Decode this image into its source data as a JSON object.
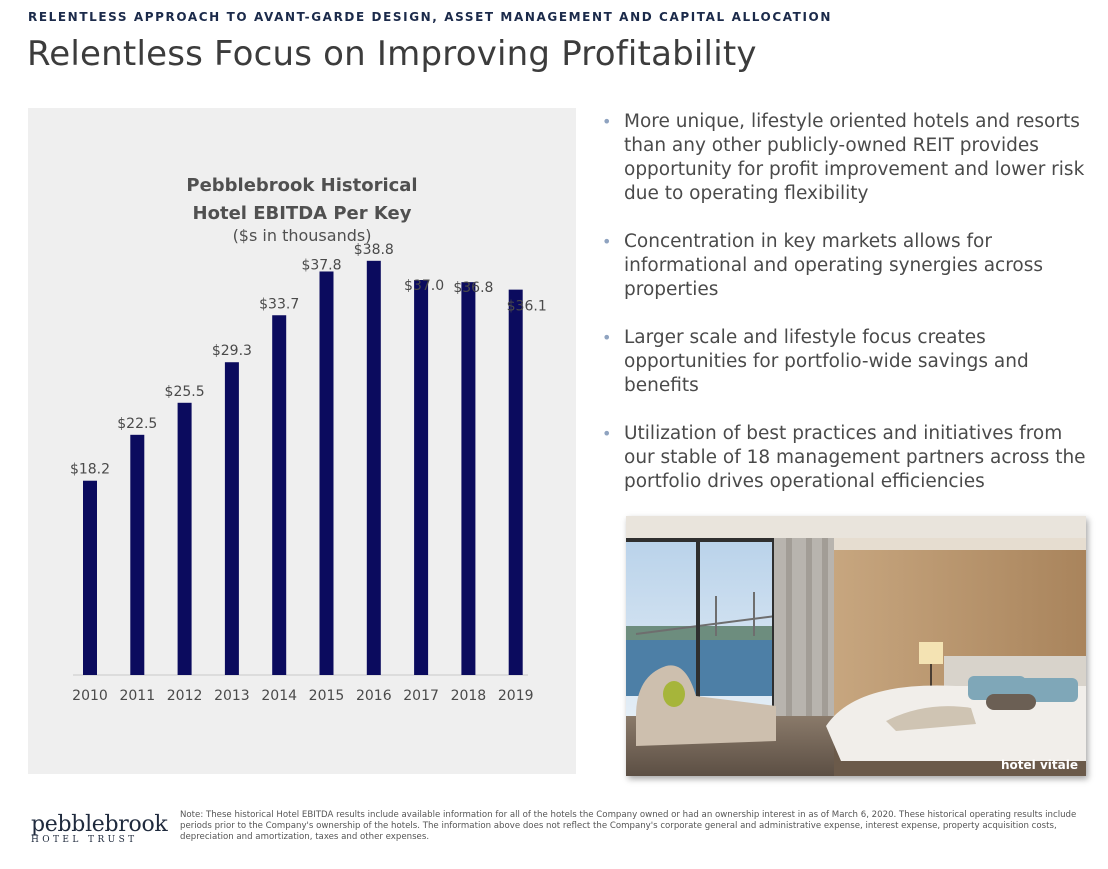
{
  "header": {
    "kicker": "RELENTLESS APPROACH TO AVANT-GARDE DESIGN, ASSET MANAGEMENT AND CAPITAL ALLOCATION",
    "title": "Relentless Focus on Improving Profitability"
  },
  "chart_data": {
    "type": "bar",
    "title_line1": "Pebblebrook Historical",
    "title_line2": "Hotel EBITDA Per Key",
    "subtitle": "($s in thousands)",
    "categories": [
      "2010",
      "2011",
      "2012",
      "2013",
      "2014",
      "2015",
      "2016",
      "2017",
      "2018",
      "2019"
    ],
    "values": [
      18.2,
      22.5,
      25.5,
      29.3,
      33.7,
      37.8,
      38.8,
      37.0,
      36.8,
      36.1
    ],
    "data_labels": [
      "$18.2",
      "$22.5",
      "$25.5",
      "$29.3",
      "$33.7",
      "$37.8",
      "$38.8",
      "$37.0",
      "$36.8",
      "$36.1"
    ],
    "ylim": [
      0,
      40
    ],
    "grid": false,
    "bar_color": "#0b0b5e"
  },
  "bullets": [
    "More unique, lifestyle oriented hotels and resorts than any other publicly-owned REIT provides opportunity for profit improvement and lower risk due to operating flexibility",
    "Concentration in key markets allows for informational and operating synergies across properties",
    "Larger scale and lifestyle focus creates opportunities for portfolio-wide savings and benefits",
    "Utilization of best practices and initiatives from our stable of 18 management partners across the portfolio drives operational efficiencies"
  ],
  "photo": {
    "caption": "hotel vitale"
  },
  "footer": {
    "logo_word": "pebblebrook",
    "logo_sub": "HOTEL TRUST",
    "note": "Note: These historical Hotel EBITDA results include available information for all of the hotels the Company owned or had an ownership interest in as of March 6, 2020. These historical operating results include periods prior to the Company's ownership of the hotels. The information above does not reflect the Company's corporate general and administrative expense, interest expense, property acquisition costs, depreciation and amortization, taxes and other expenses."
  }
}
